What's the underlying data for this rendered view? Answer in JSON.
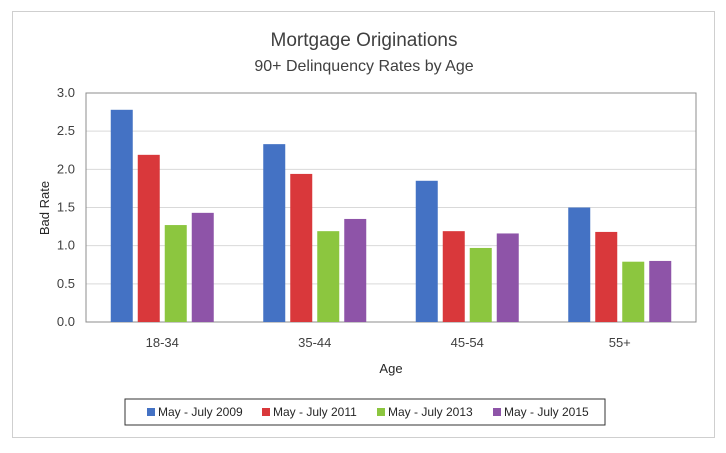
{
  "chart_data": {
    "type": "bar",
    "title": "Mortgage Originations",
    "subtitle": "90+ Delinquency Rates by Age",
    "xlabel": "Age",
    "ylabel": "Bad Rate",
    "ylim": [
      0,
      3.0
    ],
    "yticks": [
      "0.0",
      "0.5",
      "1.0",
      "1.5",
      "2.0",
      "2.5",
      "3.0"
    ],
    "categories": [
      "18-34",
      "35-44",
      "45-54",
      "55+"
    ],
    "series": [
      {
        "name": "May - July 2009",
        "color": "#4472c4",
        "values": [
          2.78,
          2.33,
          1.85,
          1.5
        ]
      },
      {
        "name": "May - July 2011",
        "color": "#d9383b",
        "values": [
          2.19,
          1.94,
          1.19,
          1.18
        ]
      },
      {
        "name": "May - July 2013",
        "color": "#8cc63f",
        "values": [
          1.27,
          1.19,
          0.97,
          0.79
        ]
      },
      {
        "name": "May - July 2015",
        "color": "#8e54a8",
        "values": [
          1.43,
          1.35,
          1.16,
          0.8
        ]
      }
    ],
    "grid": true,
    "legend_position": "bottom"
  }
}
